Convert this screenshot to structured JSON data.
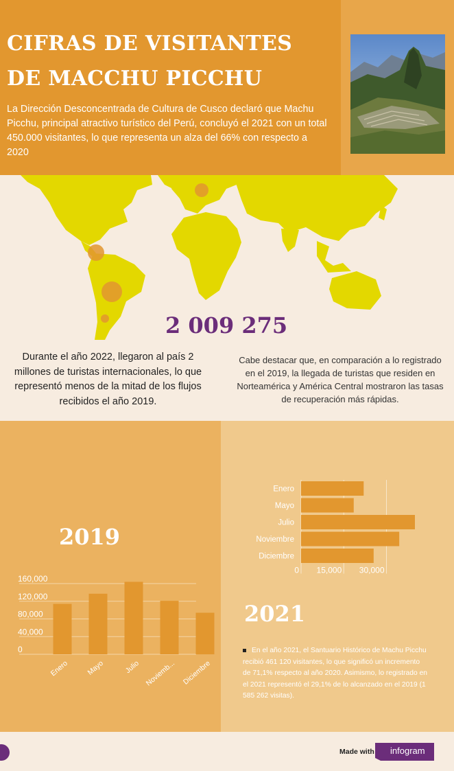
{
  "header": {
    "title": "CIFRAS DE VISITANTES DE MACCHU PICCHU",
    "intro": "La Dirección Desconcentrada de Cultura de Cusco declaró que Machu Picchu, principal atractivo turístico del Perú, concluyó el 2021 con un total 450.000 visitantes, lo que representa un alza del 66% con respecto a 2020"
  },
  "map": {
    "big_number": "2 009 275",
    "text_left": "Durante el año 2022, llegaron al país 2 millones de turistas internacionales, lo que representó menos de la mitad de los flujos recibidos el año 2019.",
    "text_right": "Cabe destacar que, en comparación a lo registrado en el 2019, la llegada de turistas que residen en Norteamérica y América Central mostraron las tasas de recuperación más rápidas."
  },
  "section_2019": {
    "year": "2019"
  },
  "section_2021": {
    "year": "2021",
    "note": "En el año 2021, el Santuario Histórico de Machu Picchu recibió 461 120 visitantes, lo que significó un incremento de 71,1% respecto al año 2020. Asimismo, lo registrado en el 2021 representó el 29,1% de lo alcanzado en el 2019 (1 585 262 visitas)."
  },
  "footer": {
    "made_with": "Made with",
    "brand": "infogram"
  },
  "colors": {
    "accent": "#e2972f",
    "bar": "#e2972f",
    "purple": "#6b2d7a",
    "map": "#e3d800"
  },
  "chart_data": [
    {
      "type": "bar",
      "categories": [
        "Enero",
        "Mayo",
        "Julio",
        "Noviemb...",
        "Diciembre"
      ],
      "values": [
        114000,
        137000,
        164000,
        121000,
        94000
      ],
      "ylim": [
        0,
        160000
      ],
      "yticks": [
        "160,000",
        "120,000",
        "80,000",
        "40,000",
        "0"
      ],
      "ytick_values": [
        160000,
        120000,
        80000,
        40000,
        0
      ],
      "grid": true
    },
    {
      "type": "bar",
      "orientation": "horizontal",
      "categories": [
        "Enero",
        "Mayo",
        "Julio",
        "Noviembre",
        "Diciembre"
      ],
      "values": [
        22000,
        18500,
        40000,
        34500,
        25500
      ],
      "xlim": [
        0,
        40000
      ],
      "xticks": [
        "0",
        "15,000",
        "30,000"
      ],
      "xtick_values": [
        0,
        15000,
        30000
      ],
      "grid": true
    }
  ]
}
